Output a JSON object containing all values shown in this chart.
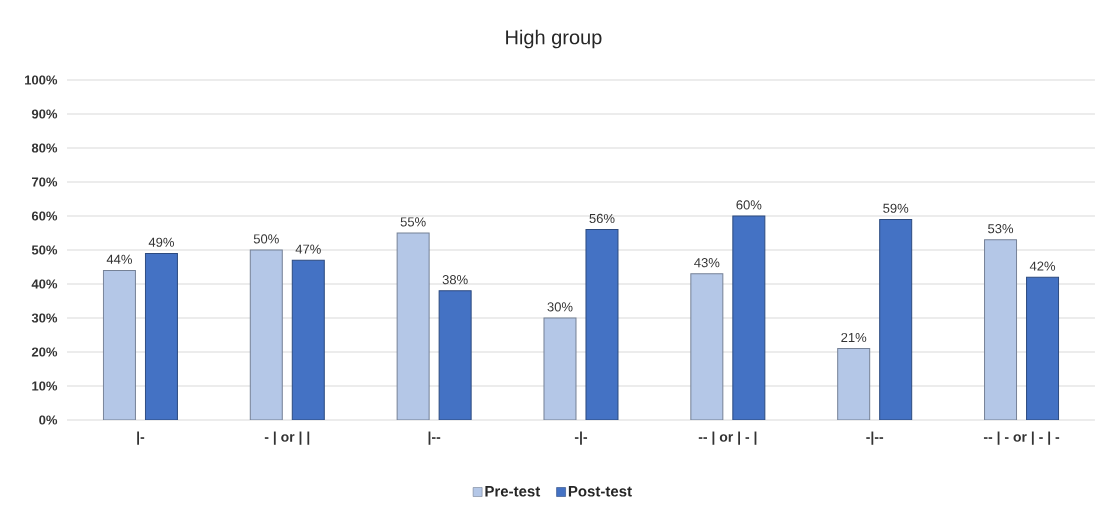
{
  "chart_data": {
    "type": "bar",
    "title": "High group",
    "categories": [
      "|-",
      "- | or | |",
      "|--",
      "-|-",
      "-- | or | - |",
      "-|--",
      "-- | - or | - | -"
    ],
    "series": [
      {
        "name": "Pre-test",
        "color": "#b4c7e7",
        "values": [
          44,
          50,
          55,
          30,
          43,
          21,
          53
        ],
        "value_labels": [
          "44%",
          "50%",
          "55%",
          "30%",
          "43%",
          "21%",
          "53%"
        ]
      },
      {
        "name": "Post-test",
        "color": "#4472c4",
        "values": [
          49,
          47,
          38,
          56,
          60,
          59,
          42
        ],
        "value_labels": [
          "49%",
          "47%",
          "38%",
          "56%",
          "60%",
          "59%",
          "42%"
        ]
      }
    ],
    "ylim": [
      0,
      100
    ],
    "yticks": [
      {
        "value": 0,
        "label": "0%"
      },
      {
        "value": 10,
        "label": "10%"
      },
      {
        "value": 20,
        "label": "20%"
      },
      {
        "value": 30,
        "label": "30%"
      },
      {
        "value": 40,
        "label": "40%"
      },
      {
        "value": 50,
        "label": "50%"
      },
      {
        "value": 60,
        "label": "60%"
      },
      {
        "value": 70,
        "label": "70%"
      },
      {
        "value": 80,
        "label": "80%"
      },
      {
        "value": 90,
        "label": "90%"
      },
      {
        "value": 100,
        "label": "100%"
      }
    ],
    "grid": "y",
    "legend": "bottom"
  }
}
